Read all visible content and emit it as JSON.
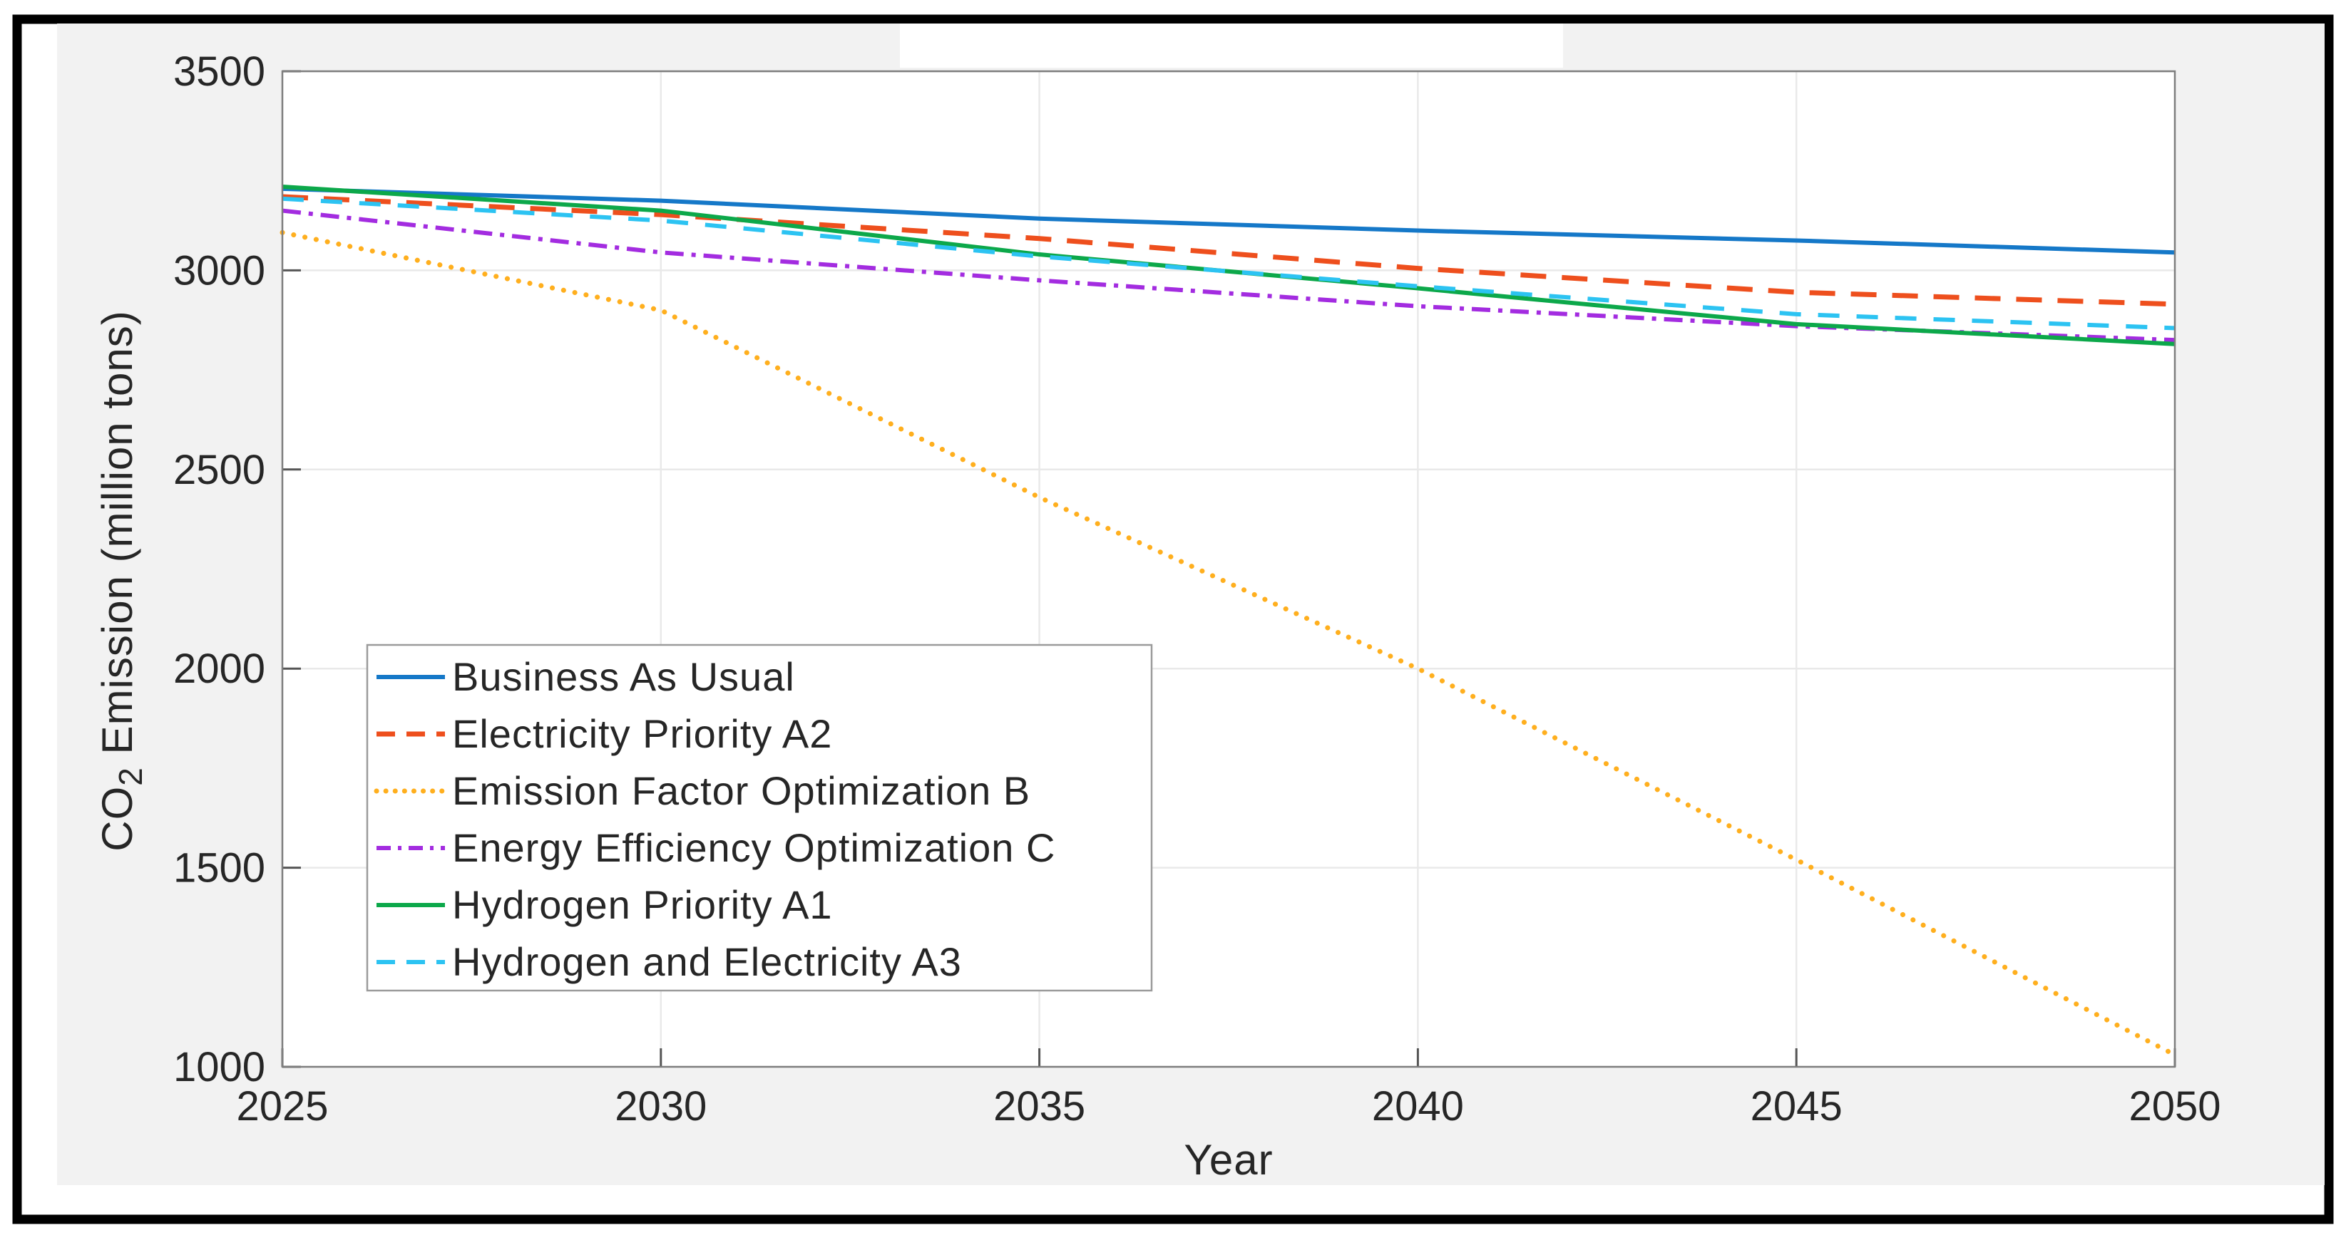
{
  "figure": {
    "page_background": "#ffffff",
    "border_color": "#000000",
    "canvas_color": "#f2f2f2",
    "plot_background": "#ffffff",
    "gridline_color": "#e9e9e9",
    "frame_color": "#7e7e7e",
    "tick_color": "#555555",
    "text_color": "#262626",
    "legend_border_color": "#9b9b9b"
  },
  "axes": {
    "x": {
      "label": "Year",
      "ticks": [
        "2025",
        "2030",
        "2035",
        "2040",
        "2045",
        "2050"
      ]
    },
    "y": {
      "label_prefix": "CO",
      "label_sub": "2",
      "label_rest": " Emission  (million tons)",
      "ticks": [
        "3500",
        "3000",
        "2500",
        "2000",
        "1500",
        "1000"
      ]
    }
  },
  "chart_data": {
    "type": "line",
    "title": "",
    "xlabel": "Year",
    "ylabel": "CO2 Emission (million tons)",
    "xlim": [
      2025,
      2050
    ],
    "ylim": [
      1000,
      3500
    ],
    "xticks": [
      2025,
      2030,
      2035,
      2040,
      2045,
      2050
    ],
    "yticks": [
      1000,
      1500,
      2000,
      2500,
      3000,
      3500
    ],
    "grid": true,
    "legend_position": "inside lower-left",
    "x": [
      2025,
      2030,
      2035,
      2040,
      2045,
      2050
    ],
    "series": [
      {
        "name": "Business As Usual",
        "color": "#1578c8",
        "style": "solid",
        "dash": "",
        "width": 6,
        "values": [
          3205,
          3175,
          3130,
          3100,
          3075,
          3045
        ]
      },
      {
        "name": "Electricity Priority A2",
        "color": "#ee4f1d",
        "style": "dashed",
        "dash": "36 22",
        "width": 7,
        "values": [
          3185,
          3140,
          3080,
          3005,
          2945,
          2915
        ]
      },
      {
        "name": "Emission Factor Optimization B",
        "color": "#ffaf1e",
        "style": "dotted",
        "dash": "0.1 16",
        "width": 7,
        "values": [
          3095,
          2900,
          2430,
          2000,
          1520,
          1030
        ]
      },
      {
        "name": "Energy Efficiency Optimization C",
        "color": "#a32ce0",
        "style": "dashdot",
        "dash": "26 11 6 11",
        "width": 6,
        "values": [
          3150,
          3045,
          2975,
          2910,
          2860,
          2825
        ]
      },
      {
        "name": "Hydrogen Priority A1",
        "color": "#0ca84a",
        "style": "solid",
        "dash": "",
        "width": 6,
        "values": [
          3210,
          3150,
          3040,
          2955,
          2865,
          2815
        ]
      },
      {
        "name": "Hydrogen and Electricity A3",
        "color": "#2cc3f2",
        "style": "dashed",
        "dash": "30 24",
        "width": 6,
        "values": [
          3180,
          3125,
          3035,
          2960,
          2890,
          2855
        ]
      }
    ]
  },
  "legend": {
    "entries": [
      "Business As Usual",
      "Electricity Priority A2",
      "Emission Factor Optimization B",
      "Energy Efficiency Optimization C",
      "Hydrogen Priority A1",
      "Hydrogen and Electricity A3"
    ]
  }
}
